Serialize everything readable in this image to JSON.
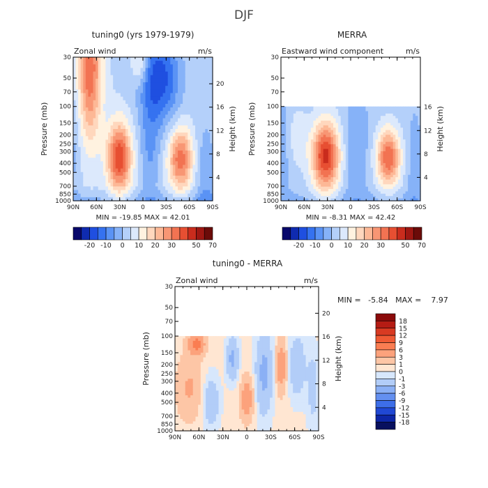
{
  "figure_title": "DJF",
  "chart_data": [
    {
      "type": "heatmap",
      "title": "tuning0 (yrs 1979-1979)",
      "left_string": "Zonal wind",
      "right_string": "m/s",
      "ylabel": "Pressure (mb)",
      "ylabel_right": "Height (km)",
      "x_ticks": [
        "90N",
        "60N",
        "30N",
        "0",
        "30S",
        "60S",
        "90S"
      ],
      "y_ticks": [
        "30",
        "50",
        "70",
        "100",
        "150",
        "200",
        "250",
        "300",
        "400",
        "500",
        "700",
        "850",
        "1000"
      ],
      "y_ticks_right": [
        "20",
        "16",
        "12",
        "8",
        "4"
      ],
      "min_max_label": "MIN =  -19.85   MAX =  42.01",
      "min": -19.85,
      "max": 42.01,
      "ylim_mb": [
        1000,
        30
      ],
      "colorbar": {
        "levels": [
          -25,
          -20,
          -15,
          -10,
          -5,
          0,
          5,
          10,
          15,
          20,
          25,
          30,
          35,
          40,
          50,
          60,
          70
        ],
        "tick_labels": [
          "-20",
          "-10",
          "0",
          "10",
          "20",
          "30",
          "50",
          "70"
        ],
        "colors": [
          "#08086b",
          "#0f2bb0",
          "#1f4fe0",
          "#3572f0",
          "#5a93f5",
          "#86b2f8",
          "#b4d0fa",
          "#dce9fc",
          "#fff2e0",
          "#ffd7bd",
          "#fdb896",
          "#f89674",
          "#f27352",
          "#e74f32",
          "#c92c1d",
          "#9e1712",
          "#6b0b09"
        ]
      }
    },
    {
      "type": "heatmap",
      "title": "MERRA",
      "left_string": "Eastward wind component",
      "right_string": "m/s",
      "ylabel": "Pressure (mb)",
      "ylabel_right": "Height (km)",
      "x_ticks": [
        "90N",
        "60N",
        "30N",
        "0",
        "30S",
        "60S",
        "90S"
      ],
      "y_ticks": [
        "30",
        "50",
        "70",
        "100",
        "150",
        "200",
        "250",
        "300",
        "400",
        "500",
        "700",
        "850",
        "1000"
      ],
      "y_ticks_right": [
        "16",
        "12",
        "8",
        "4"
      ],
      "min_max_label": "MIN =  -8.31   MAX =  42.42",
      "min": -8.31,
      "max": 42.42,
      "data_top_mb": 100,
      "colorbar": {
        "levels": [
          -25,
          -20,
          -15,
          -10,
          -5,
          0,
          5,
          10,
          15,
          20,
          25,
          30,
          35,
          40,
          50,
          60,
          70
        ],
        "tick_labels": [
          "-20",
          "-10",
          "0",
          "10",
          "20",
          "30",
          "50",
          "70"
        ],
        "colors": [
          "#08086b",
          "#0f2bb0",
          "#1f4fe0",
          "#3572f0",
          "#5a93f5",
          "#86b2f8",
          "#b4d0fa",
          "#dce9fc",
          "#fff2e0",
          "#ffd7bd",
          "#fdb896",
          "#f89674",
          "#f27352",
          "#e74f32",
          "#c92c1d",
          "#9e1712",
          "#6b0b09"
        ]
      }
    },
    {
      "type": "heatmap",
      "title": "tuning0 - MERRA",
      "left_string": "Zonal wind",
      "right_string": "m/s",
      "ylabel": "Pressure (mb)",
      "ylabel_right": "Height (km)",
      "x_ticks": [
        "90N",
        "60N",
        "30N",
        "0",
        "30S",
        "60S",
        "90S"
      ],
      "y_ticks": [
        "30",
        "50",
        "70",
        "100",
        "150",
        "200",
        "250",
        "300",
        "400",
        "500",
        "700",
        "850",
        "1000"
      ],
      "y_ticks_right": [
        "20",
        "16",
        "12",
        "8",
        "4"
      ],
      "min_max_label": "MIN =   -5.84   MAX =    7.97",
      "min": -5.84,
      "max": 7.97,
      "data_top_mb": 100,
      "colorbar": {
        "orientation": "vertical",
        "tick_labels": [
          "18",
          "15",
          "12",
          "9",
          "6",
          "3",
          "1",
          "0",
          "-1",
          "-3",
          "-6",
          "-9",
          "-12",
          "-15",
          "-18"
        ],
        "colors": [
          "#8b0a0a",
          "#b51c14",
          "#d83a22",
          "#ef5a34",
          "#fa7d52",
          "#fca27c",
          "#fdc6a6",
          "#ffe6d2",
          "#d7e7fc",
          "#b2cdf8",
          "#8bb0f5",
          "#6490f0",
          "#3d6ee8",
          "#2048d4",
          "#0d26a6",
          "#08105e"
        ]
      }
    }
  ]
}
